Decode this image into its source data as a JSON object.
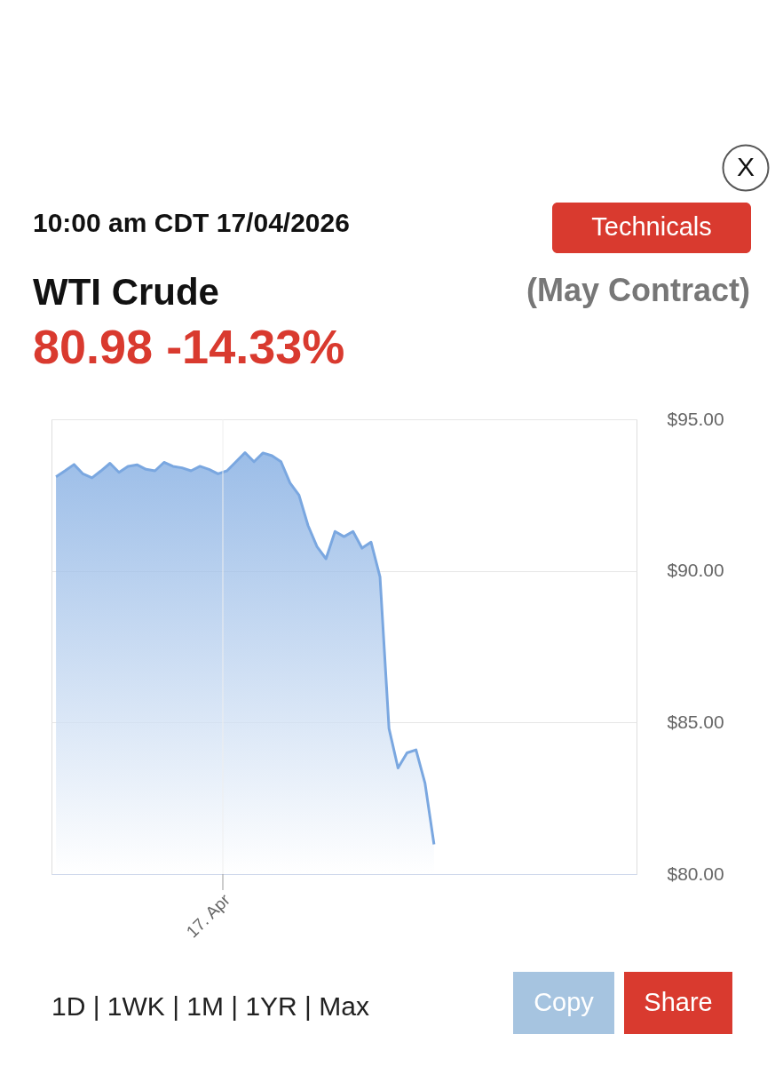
{
  "chart_data": {
    "type": "area",
    "title": "WTI Crude",
    "subtitle": "(May Contract)",
    "annotations": [
      "10:00 am CDT 17/04/2026",
      "80.98 -14.33%",
      "Technicals",
      "X",
      "1D | 1WK | 1M | 1YR | Max",
      "Copy",
      "Share",
      "17. Apr"
    ],
    "categories": [
      null,
      null,
      null,
      null,
      null,
      null,
      null,
      null,
      null,
      null,
      null,
      null,
      null,
      null,
      null,
      null,
      null,
      null,
      null,
      null,
      null,
      null,
      null,
      null,
      null,
      null,
      null,
      null,
      null,
      null,
      null,
      null,
      null,
      null,
      null,
      null,
      null,
      null,
      null,
      null,
      null,
      null,
      null,
      null,
      null,
      null,
      null,
      null,
      null,
      null,
      null,
      null,
      null,
      null,
      null,
      null,
      null,
      null,
      null,
      null,
      null,
      null,
      null,
      null,
      null
    ],
    "series": [
      {
        "color": "#7aa7e0",
        "values": [
          93.1,
          93.3,
          93.51,
          93.2,
          93.07,
          93.3,
          93.55,
          93.25,
          93.45,
          93.5,
          93.35,
          93.3,
          93.58,
          93.45,
          93.4,
          93.3,
          93.45,
          93.35,
          93.2,
          93.3,
          93.6,
          93.9,
          93.6,
          93.89,
          93.8,
          93.6,
          92.9,
          92.5,
          91.5,
          90.8,
          90.4,
          91.3,
          91.13,
          91.3,
          90.75,
          90.95,
          89.8,
          84.8,
          83.5,
          84.0,
          84.1,
          83.0,
          80.98,
          null,
          null,
          null,
          null,
          null,
          null,
          null,
          null,
          null,
          null,
          null,
          null,
          null,
          null,
          null,
          null,
          null,
          null,
          null,
          null,
          null,
          null
        ]
      }
    ],
    "ylim": [
      80,
      95
    ],
    "yticks": [
      {
        "value": 80,
        "label": "$80.00"
      },
      {
        "value": 85,
        "label": "$85.00"
      },
      {
        "value": 90,
        "label": "$90.00"
      },
      {
        "value": 95,
        "label": "$95.00"
      }
    ],
    "grid": "y"
  }
}
